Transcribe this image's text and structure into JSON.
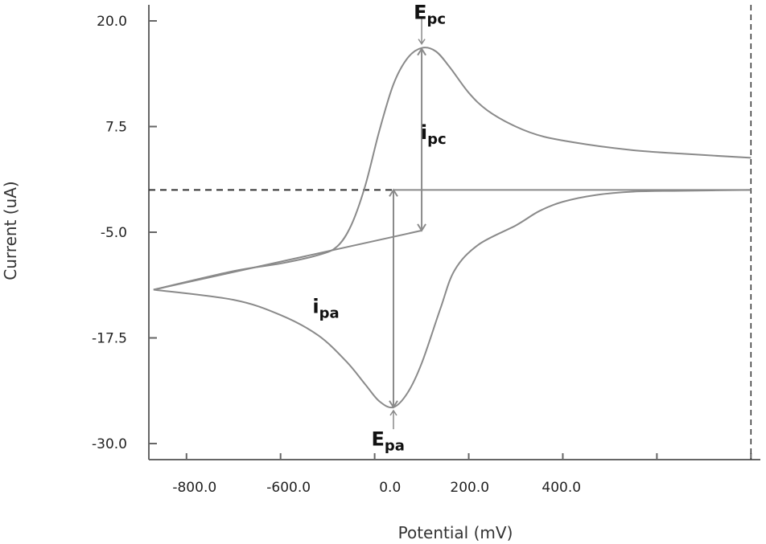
{
  "chart_data": {
    "type": "line",
    "xlabel": "Potential (mV)",
    "ylabel": "Current (uA)",
    "xlim": [
      -880,
      420
    ],
    "ylim": [
      -32,
      23
    ],
    "x_tick_labels": [
      "-800.0",
      "-600.0",
      "0.0",
      "200.0",
      "400.0"
    ],
    "x_tick_values": [
      -800,
      -600,
      -400,
      -200,
      0,
      200,
      400
    ],
    "y_tick_labels": [
      "20.0",
      "7.5",
      "-5.0",
      "-17.5",
      "-30.0"
    ],
    "y_tick_values": [
      20,
      7.5,
      -5,
      -17.5,
      -30
    ],
    "grid": false,
    "series": [
      {
        "segment": "reduction sweep",
        "points": [
          [
            -870,
            -11.8
          ],
          [
            -700,
            -9.6
          ],
          [
            -600,
            -8.7
          ],
          [
            -520,
            -7.7
          ],
          [
            -480,
            -6.7
          ],
          [
            -450,
            -4.2
          ],
          [
            -420,
            0.5
          ],
          [
            -390,
            7.0
          ],
          [
            -360,
            12.5
          ],
          [
            -330,
            15.6
          ],
          [
            -300,
            16.8
          ],
          [
            -270,
            16.4
          ],
          [
            -240,
            14.5
          ],
          [
            -200,
            11.5
          ],
          [
            -160,
            9.4
          ],
          [
            -100,
            7.5
          ],
          [
            -40,
            6.3
          ],
          [
            50,
            5.4
          ],
          [
            150,
            4.7
          ],
          [
            250,
            4.3
          ],
          [
            400,
            3.8
          ]
        ]
      },
      {
        "segment": "oxidation sweep",
        "points": [
          [
            400,
            0.0
          ],
          [
            250,
            -0.1
          ],
          [
            150,
            -0.2
          ],
          [
            70,
            -0.6
          ],
          [
            0,
            -1.4
          ],
          [
            -50,
            -2.5
          ],
          [
            -100,
            -4.2
          ],
          [
            -180,
            -6.5
          ],
          [
            -230,
            -9.5
          ],
          [
            -260,
            -14.0
          ],
          [
            -300,
            -20.5
          ],
          [
            -330,
            -24.0
          ],
          [
            -360,
            -25.7
          ],
          [
            -390,
            -25.0
          ],
          [
            -420,
            -23.0
          ],
          [
            -460,
            -20.3
          ],
          [
            -520,
            -17.2
          ],
          [
            -600,
            -14.8
          ],
          [
            -700,
            -13.0
          ],
          [
            -870,
            -11.8
          ]
        ]
      }
    ],
    "baselines": [
      {
        "style": "dashed",
        "from": [
          -880,
          0
        ],
        "to": [
          -360,
          0
        ]
      },
      {
        "style": "solid",
        "from": [
          -360,
          0
        ],
        "to": [
          400,
          0
        ]
      },
      {
        "style": "solid",
        "from": [
          -870,
          -11.8
        ],
        "to": [
          -300,
          -4.8
        ]
      }
    ],
    "switch_line": {
      "style": "dashed",
      "x": 400,
      "ylim": [
        -32,
        23
      ]
    },
    "peak_lines": [
      {
        "x": -300,
        "from": 16.7,
        "to": -4.8
      },
      {
        "x": -360,
        "from": 0,
        "to": -25.7
      }
    ],
    "annotations": [
      {
        "main": "E",
        "sub": "pc",
        "x": -300,
        "y": 21.0
      },
      {
        "main": "i",
        "sub": "pc",
        "x": -285,
        "y": 6.8
      },
      {
        "main": "i",
        "sub": "pa",
        "x": -515,
        "y": -13.8
      },
      {
        "main": "E",
        "sub": "pa",
        "x": -390,
        "y": -29.5
      }
    ],
    "colors": {
      "curve": "#8a8a8a",
      "axis": "#666666",
      "dashed": "#333333"
    }
  }
}
